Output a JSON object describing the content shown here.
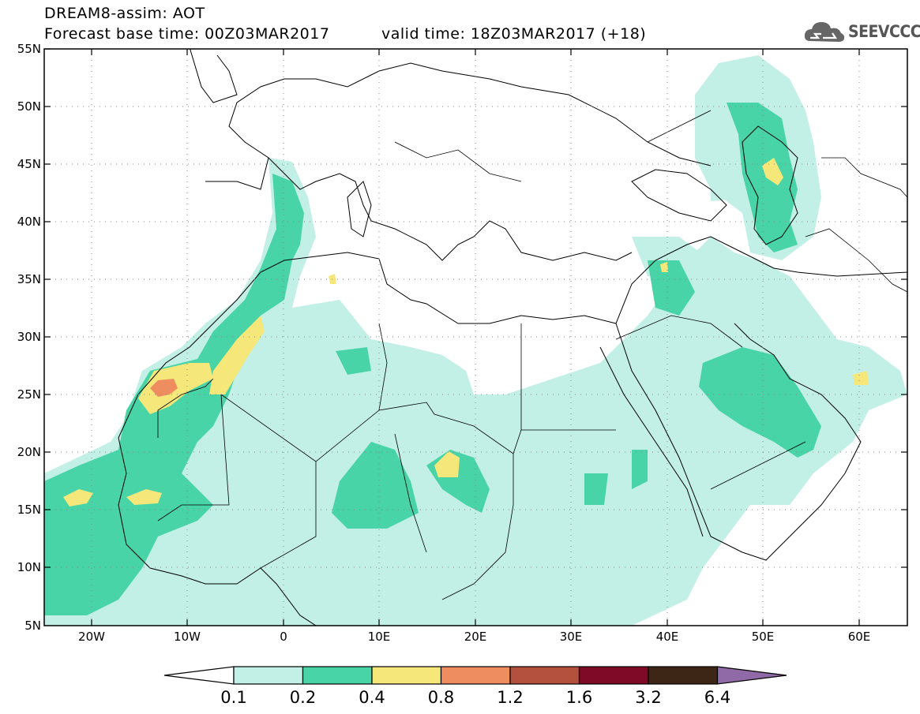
{
  "header": {
    "title_line1": "DREAM8-assim: AOT",
    "base_time": "Forecast base time: 00Z03MAR2017",
    "valid_time": "valid time: 18Z03MAR2017 (+18)"
  },
  "logo": {
    "text": "SEEVCCC",
    "icon": "cloud-icon",
    "color": "#666666"
  },
  "map": {
    "lat_labels": [
      "55N",
      "50N",
      "45N",
      "40N",
      "35N",
      "30N",
      "25N",
      "20N",
      "15N",
      "10N",
      "5N"
    ],
    "lon_labels": [
      "20W",
      "10W",
      "0",
      "10E",
      "20E",
      "30E",
      "40E",
      "50E",
      "60E"
    ],
    "grid": "dotted"
  },
  "colorbar": {
    "levels": [
      "0.1",
      "0.2",
      "0.4",
      "0.8",
      "1.2",
      "1.6",
      "3.2",
      "6.4"
    ],
    "colors": [
      "#ffffff",
      "#c2efe6",
      "#48d4a6",
      "#f6e77a",
      "#ee8d60",
      "#b4513e",
      "#7e0a27",
      "#3e2617",
      "#8f6aa6"
    ]
  }
}
